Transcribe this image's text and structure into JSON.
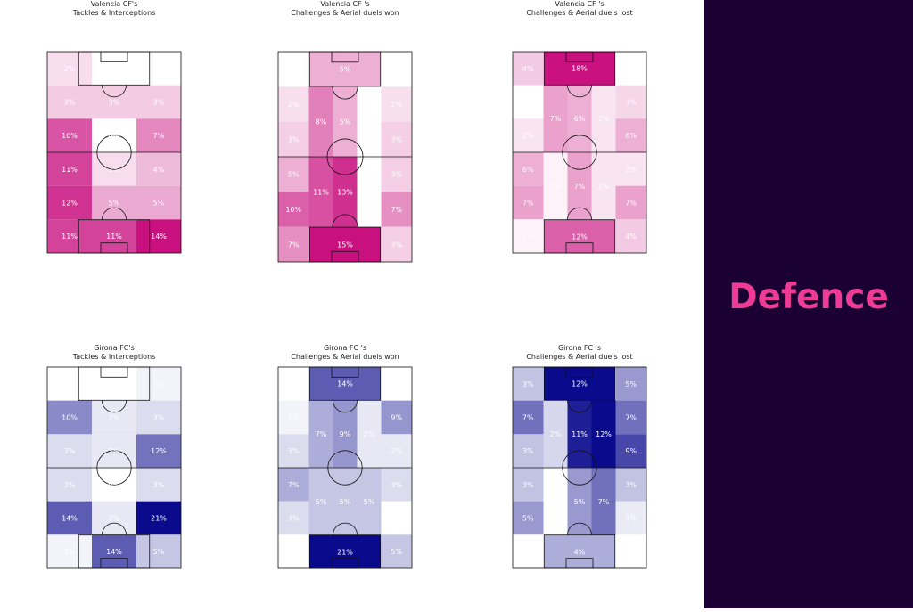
{
  "sidebar": {
    "title": "Defence",
    "background_color": "#1a0033",
    "title_color": "#ee3c96"
  },
  "chart_data": [
    {
      "type": "heatmap",
      "title_line1": "Valencia CF's",
      "title_line2": "Tackles & Interceptions",
      "color": "#c8107f",
      "max_value": 14,
      "columns": [
        {
          "cells": [
            {
              "label": "2%",
              "value": 2
            },
            {
              "label": "3%",
              "value": 3
            },
            {
              "label": "10%",
              "value": 10
            },
            {
              "label": "11%",
              "value": 11
            },
            {
              "label": "12%",
              "value": 12
            },
            {
              "label": "11%",
              "value": 11
            }
          ]
        },
        {
          "cells": [
            {
              "label": "0%",
              "value": 0
            },
            {
              "label": "3%",
              "value": 3
            },
            {
              "label": "0%",
              "value": 0
            },
            {
              "label": "2%",
              "value": 2
            },
            {
              "label": "5%",
              "value": 5
            },
            {
              "label": "11%",
              "value": 11
            }
          ]
        },
        {
          "cells": [
            {
              "label": "0%",
              "value": 0
            },
            {
              "label": "3%",
              "value": 3
            },
            {
              "label": "7%",
              "value": 7
            },
            {
              "label": "4%",
              "value": 4
            },
            {
              "label": "5%",
              "value": 5
            },
            {
              "label": "14%",
              "value": 14
            }
          ]
        }
      ]
    },
    {
      "type": "heatmap",
      "title_line1": "Valencia CF 's",
      "title_line2": "Challenges & Aerial duels won",
      "color": "#c8107f",
      "max_value": 15,
      "columns": [
        {
          "cells": [
            {
              "label": "0%",
              "value": 0
            },
            {
              "label": "2%",
              "value": 2
            },
            {
              "label": "3%",
              "value": 3
            },
            {
              "label": "5%",
              "value": 5
            },
            {
              "label": "10%",
              "value": 10
            },
            {
              "label": "7%",
              "value": 7
            }
          ]
        },
        {
          "cells": [
            {
              "label": "8%",
              "value": 8
            },
            {
              "label": "11%",
              "value": 11
            }
          ]
        },
        {
          "cells": [
            {
              "label": "5%",
              "value": 5
            },
            {
              "label": "13%",
              "value": 13
            }
          ]
        },
        {
          "cells": [
            {
              "label": "0%",
              "value": 0
            },
            {
              "label": "0%",
              "value": 0
            }
          ]
        },
        {
          "cells": [
            {
              "label": "0%",
              "value": 0
            },
            {
              "label": "2%",
              "value": 2
            },
            {
              "label": "3%",
              "value": 3
            },
            {
              "label": "3%",
              "value": 3
            },
            {
              "label": "7%",
              "value": 7
            },
            {
              "label": "3%",
              "value": 3
            }
          ]
        }
      ],
      "top_box": {
        "label": "5%",
        "value": 5
      },
      "bottom_box": {
        "label": "15%",
        "value": 15
      }
    },
    {
      "type": "heatmap",
      "title_line1": "Valencia CF 's",
      "title_line2": "Challenges & Aerial duels lost",
      "color": "#c8107f",
      "max_value": 18,
      "columns": [
        {
          "cells": [
            {
              "label": "4%",
              "value": 4
            },
            {
              "label": "0%",
              "value": 0
            },
            {
              "label": "2%",
              "value": 2
            },
            {
              "label": "6%",
              "value": 6
            },
            {
              "label": "7%",
              "value": 7
            },
            {
              "label": "1%",
              "value": 1
            }
          ]
        },
        {
          "cells": [
            {
              "label": "7%",
              "value": 7
            },
            {
              "label": "1%",
              "value": 1
            }
          ]
        },
        {
          "cells": [
            {
              "label": "6%",
              "value": 6
            },
            {
              "label": "7%",
              "value": 7
            }
          ]
        },
        {
          "cells": [
            {
              "label": "2%",
              "value": 2
            },
            {
              "label": "2%",
              "value": 2
            }
          ]
        },
        {
          "cells": [
            {
              "label": "0%",
              "value": 0
            },
            {
              "label": "3%",
              "value": 3
            },
            {
              "label": "6%",
              "value": 6
            },
            {
              "label": "2%",
              "value": 2
            },
            {
              "label": "7%",
              "value": 7
            },
            {
              "label": "4%",
              "value": 4
            }
          ]
        }
      ],
      "top_box": {
        "label": "18%",
        "value": 18
      },
      "bottom_box": {
        "label": "12%",
        "value": 12
      }
    },
    {
      "type": "heatmap",
      "title_line1": "Girona FC's",
      "title_line2": "Tackles & Interceptions",
      "color": "#0a0a8c",
      "max_value": 21,
      "columns": [
        {
          "cells": [
            {
              "label": "0%",
              "value": 0
            },
            {
              "label": "10%",
              "value": 10
            },
            {
              "label": "3%",
              "value": 3
            },
            {
              "label": "3%",
              "value": 3
            },
            {
              "label": "14%",
              "value": 14
            },
            {
              "label": "1%",
              "value": 1
            }
          ]
        },
        {
          "cells": [
            {
              "label": "0%",
              "value": 0
            },
            {
              "label": "2%",
              "value": 2
            },
            {
              "label": "2%",
              "value": 2
            },
            {
              "label": "0%",
              "value": 0
            },
            {
              "label": "2%",
              "value": 2
            },
            {
              "label": "14%",
              "value": 14
            }
          ]
        },
        {
          "cells": [
            {
              "label": "1%",
              "value": 1
            },
            {
              "label": "3%",
              "value": 3
            },
            {
              "label": "12%",
              "value": 12
            },
            {
              "label": "3%",
              "value": 3
            },
            {
              "label": "21%",
              "value": 21
            },
            {
              "label": "5%",
              "value": 5
            }
          ]
        }
      ]
    },
    {
      "type": "heatmap",
      "title_line1": "Girona FC 's",
      "title_line2": "Challenges & Aerial duels won",
      "color": "#0a0a8c",
      "max_value": 21,
      "columns": [
        {
          "cells": [
            {
              "label": "0%",
              "value": 0
            },
            {
              "label": "1%",
              "value": 1
            },
            {
              "label": "3%",
              "value": 3
            },
            {
              "label": "7%",
              "value": 7
            },
            {
              "label": "3%",
              "value": 3
            },
            {
              "label": "0%",
              "value": 0
            }
          ]
        },
        {
          "cells": [
            {
              "label": "7%",
              "value": 7
            },
            {
              "label": "5%",
              "value": 5
            }
          ]
        },
        {
          "cells": [
            {
              "label": "9%",
              "value": 9
            },
            {
              "label": "5%",
              "value": 5
            }
          ]
        },
        {
          "cells": [
            {
              "label": "2%",
              "value": 2
            },
            {
              "label": "5%",
              "value": 5
            }
          ]
        },
        {
          "cells": [
            {
              "label": "0%",
              "value": 0
            },
            {
              "label": "9%",
              "value": 9
            },
            {
              "label": "2%",
              "value": 2
            },
            {
              "label": "3%",
              "value": 3
            },
            {
              "label": "0%",
              "value": 0
            },
            {
              "label": "5%",
              "value": 5
            }
          ]
        }
      ],
      "top_box": {
        "label": "14%",
        "value": 14
      },
      "bottom_box": {
        "label": "21%",
        "value": 21
      }
    },
    {
      "type": "heatmap",
      "title_line1": "Girona FC 's",
      "title_line2": "Challenges & Aerial duels lost",
      "color": "#0a0a8c",
      "max_value": 12,
      "columns": [
        {
          "cells": [
            {
              "label": "3%",
              "value": 3
            },
            {
              "label": "7%",
              "value": 7
            },
            {
              "label": "3%",
              "value": 3
            },
            {
              "label": "3%",
              "value": 3
            },
            {
              "label": "5%",
              "value": 5
            },
            {
              "label": "0%",
              "value": 0
            }
          ]
        },
        {
          "cells": [
            {
              "label": "2%",
              "value": 2
            },
            {
              "label": "0%",
              "value": 0
            }
          ]
        },
        {
          "cells": [
            {
              "label": "11%",
              "value": 11
            },
            {
              "label": "5%",
              "value": 5
            }
          ]
        },
        {
          "cells": [
            {
              "label": "12%",
              "value": 12
            },
            {
              "label": "7%",
              "value": 7
            }
          ]
        },
        {
          "cells": [
            {
              "label": "5%",
              "value": 5
            },
            {
              "label": "7%",
              "value": 7
            },
            {
              "label": "9%",
              "value": 9
            },
            {
              "label": "3%",
              "value": 3
            },
            {
              "label": "1%",
              "value": 1
            },
            {
              "label": "0%",
              "value": 0
            }
          ]
        }
      ],
      "top_box": {
        "label": "12%",
        "value": 12
      },
      "bottom_box": {
        "label": "4%",
        "value": 4
      }
    }
  ]
}
